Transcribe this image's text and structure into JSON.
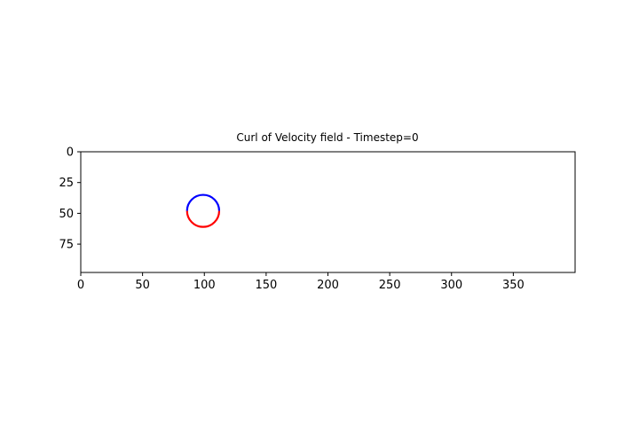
{
  "chart_data": {
    "type": "heatmap",
    "title": "Curl of Velocity field - Timestep=0",
    "xlabel": "",
    "ylabel": "",
    "xlim": [
      0,
      400
    ],
    "ylim": [
      98,
      0
    ],
    "xticks": [
      0,
      50,
      100,
      150,
      200,
      250,
      300,
      350
    ],
    "yticks": [
      0,
      25,
      50,
      75
    ],
    "colormap": "bwr",
    "colors": {
      "positive": "#0000ff",
      "negative": "#ff0000",
      "zero": "#ffffff"
    },
    "grid": false,
    "legend": "none",
    "features": [
      {
        "name": "",
        "shape": "circle-arc-upper",
        "center_x": 99,
        "center_y": 48,
        "radius": 13,
        "sign": "positive"
      },
      {
        "name": "",
        "shape": "circle-arc-lower",
        "center_x": 99,
        "center_y": 48,
        "radius": 13,
        "sign": "negative"
      }
    ]
  }
}
